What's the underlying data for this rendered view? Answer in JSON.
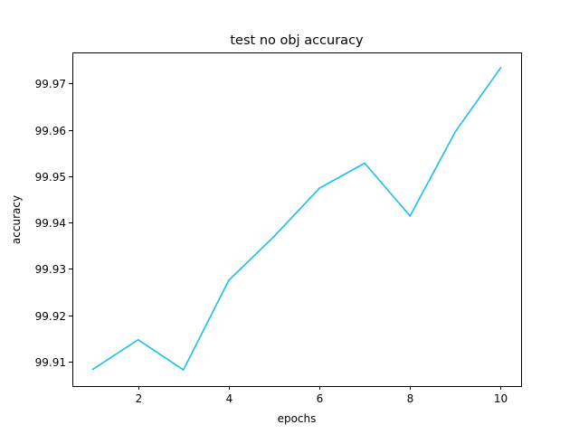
{
  "chart_data": {
    "type": "line",
    "title": "test no obj accuracy",
    "xlabel": "epochs",
    "ylabel": "accuracy",
    "xlim": [
      0.55,
      10.45
    ],
    "ylim": [
      99.9047,
      99.9767
    ],
    "xticks": [
      2,
      4,
      6,
      8,
      10
    ],
    "yticks": [
      99.91,
      99.92,
      99.93,
      99.94,
      99.95,
      99.96,
      99.97
    ],
    "grid": false,
    "color": "#18bfef",
    "series": [
      {
        "x": [
          1,
          2,
          3,
          4,
          5,
          6,
          7,
          8,
          9,
          10
        ],
        "y": [
          99.9083,
          99.9147,
          99.9082,
          99.9275,
          99.937,
          99.9474,
          99.9528,
          99.9414,
          99.9596,
          99.9734
        ]
      }
    ]
  }
}
